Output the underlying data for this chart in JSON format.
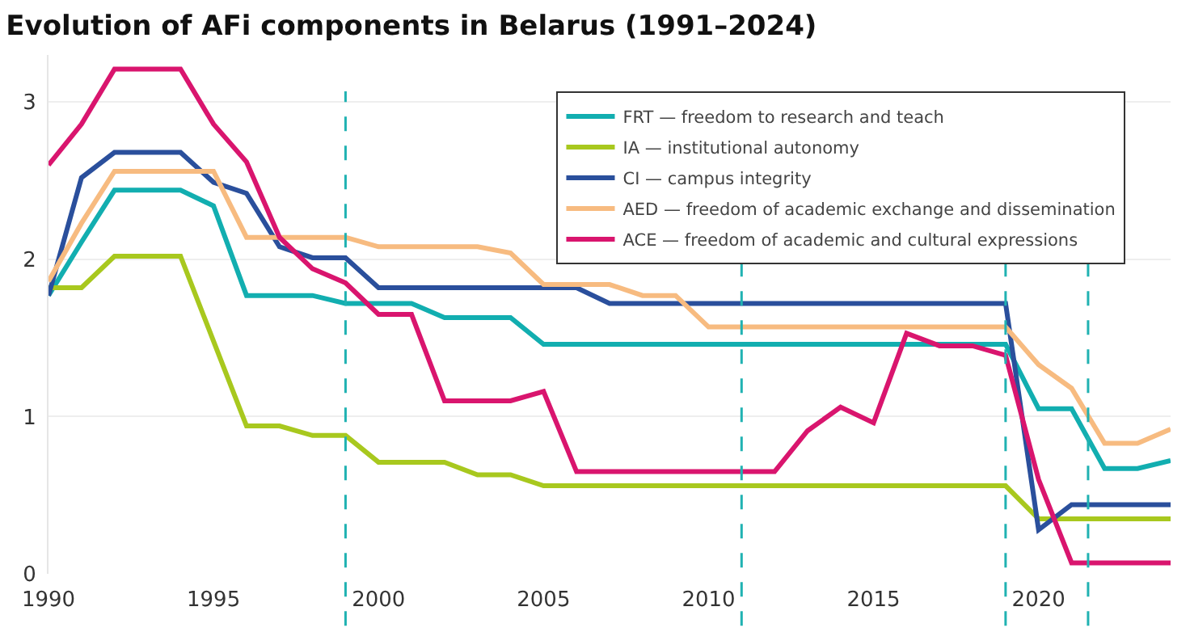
{
  "chart_data": {
    "type": "line",
    "title": "Evolution of AFi components in Belarus (1991–2024)",
    "x": [
      1990,
      1991,
      1992,
      1993,
      1994,
      1995,
      1996,
      1997,
      1998,
      1999,
      2000,
      2001,
      2002,
      2003,
      2004,
      2005,
      2006,
      2007,
      2008,
      2009,
      2010,
      2011,
      2012,
      2013,
      2014,
      2015,
      2016,
      2017,
      2018,
      2019,
      2020,
      2021,
      2022,
      2023,
      2024
    ],
    "series": [
      {
        "name": "FRT — freedom to research and teach",
        "color": "#12aeb0",
        "values": [
          1.77,
          2.11,
          2.44,
          2.44,
          2.44,
          2.34,
          1.77,
          1.77,
          1.77,
          1.72,
          1.72,
          1.72,
          1.63,
          1.63,
          1.63,
          1.46,
          1.46,
          1.46,
          1.46,
          1.46,
          1.46,
          1.46,
          1.46,
          1.46,
          1.46,
          1.46,
          1.46,
          1.46,
          1.46,
          1.46,
          1.05,
          1.05,
          0.67,
          0.67,
          0.72
        ]
      },
      {
        "name": "IA — institutional autonomy",
        "color": "#a8c81e",
        "values": [
          1.82,
          1.82,
          2.02,
          2.02,
          2.02,
          1.48,
          0.94,
          0.94,
          0.88,
          0.88,
          0.71,
          0.71,
          0.71,
          0.63,
          0.63,
          0.56,
          0.56,
          0.56,
          0.56,
          0.56,
          0.56,
          0.56,
          0.56,
          0.56,
          0.56,
          0.56,
          0.56,
          0.56,
          0.56,
          0.56,
          0.35,
          0.35,
          0.35,
          0.35,
          0.35
        ]
      },
      {
        "name": "CI — campus integrity",
        "color": "#2a4f9c",
        "values": [
          1.77,
          2.52,
          2.68,
          2.68,
          2.68,
          2.49,
          2.42,
          2.08,
          2.01,
          2.01,
          1.82,
          1.82,
          1.82,
          1.82,
          1.82,
          1.82,
          1.82,
          1.72,
          1.72,
          1.72,
          1.72,
          1.72,
          1.72,
          1.72,
          1.72,
          1.72,
          1.72,
          1.72,
          1.72,
          1.72,
          0.28,
          0.44,
          0.44,
          0.44,
          0.44
        ]
      },
      {
        "name": "AED — freedom of academic exchange and dissemination",
        "color": "#f7bb80",
        "values": [
          1.86,
          2.23,
          2.56,
          2.56,
          2.56,
          2.56,
          2.14,
          2.14,
          2.14,
          2.14,
          2.08,
          2.08,
          2.08,
          2.08,
          2.04,
          1.84,
          1.84,
          1.84,
          1.77,
          1.77,
          1.57,
          1.57,
          1.57,
          1.57,
          1.57,
          1.57,
          1.57,
          1.57,
          1.57,
          1.57,
          1.33,
          1.18,
          0.83,
          0.83,
          0.92
        ]
      },
      {
        "name": "ACE — freedom of academic and cultural expressions",
        "color": "#d9156e",
        "values": [
          2.6,
          2.86,
          3.21,
          3.21,
          3.21,
          2.86,
          2.62,
          2.14,
          1.94,
          1.85,
          1.65,
          1.65,
          1.1,
          1.1,
          1.1,
          1.16,
          0.65,
          0.65,
          0.65,
          0.65,
          0.65,
          0.65,
          0.65,
          0.91,
          1.06,
          0.96,
          1.53,
          1.45,
          1.45,
          1.39,
          0.6,
          0.07,
          0.07,
          0.07,
          0.07
        ]
      }
    ],
    "xlim": [
      1990,
      2024
    ],
    "xticks": [
      1990,
      1995,
      2000,
      2005,
      2010,
      2015,
      2020
    ],
    "ylim": [
      0,
      3.3
    ],
    "yticks": [
      0,
      1,
      2,
      3
    ],
    "ref_lines": [
      {
        "axis": "x",
        "value": 1999,
        "color": "#20b2b2",
        "line_style": "dashed"
      },
      {
        "axis": "x",
        "value": 2011,
        "color": "#20b2b2",
        "line_style": "dashed"
      },
      {
        "axis": "x",
        "value": 2019,
        "color": "#20b2b2",
        "line_style": "dashed"
      },
      {
        "axis": "x",
        "value": 2021.5,
        "color": "#20b2b2",
        "line_style": "dashed"
      }
    ],
    "grid": "y",
    "legend": "top right",
    "marker": "none",
    "line_style": "solid"
  }
}
